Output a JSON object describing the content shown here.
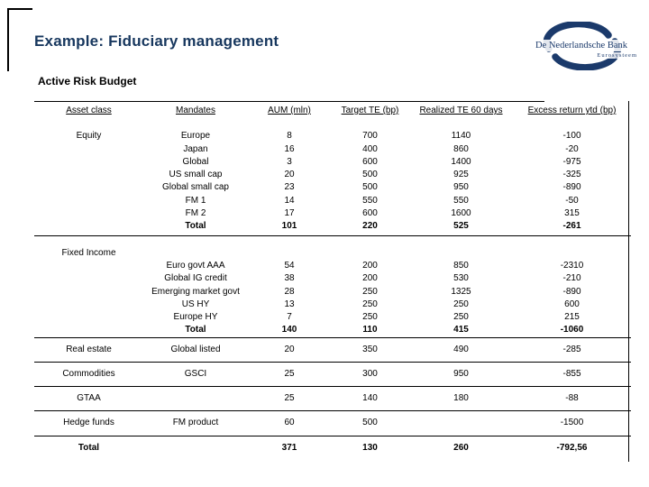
{
  "slide": {
    "title": "Example: Fiduciary management"
  },
  "logo": {
    "name": "De Nederlandsche Bank",
    "subtitle": "Eurosysteem",
    "color": "#1b3a6b"
  },
  "accent_colors": {
    "title_navy": "#17375e",
    "table_line": "#000000"
  },
  "table": {
    "title": "Active Risk Budget",
    "headers": [
      "Asset class",
      "Mandates",
      "AUM (mln)",
      "Target TE (bp)",
      "Realized TE 60 days",
      "Excess return ytd (bp)"
    ],
    "rows": [
      {
        "type": "normal",
        "cells": [
          "Equity",
          "Europe",
          "8",
          "700",
          "1140",
          "-100"
        ]
      },
      {
        "type": "normal",
        "cells": [
          "",
          "Japan",
          "16",
          "400",
          "860",
          "-20"
        ]
      },
      {
        "type": "normal",
        "cells": [
          "",
          "Global",
          "3",
          "600",
          "1400",
          "-975"
        ]
      },
      {
        "type": "normal",
        "cells": [
          "",
          "US small cap",
          "20",
          "500",
          "925",
          "-325"
        ]
      },
      {
        "type": "normal",
        "cells": [
          "",
          "Global small cap",
          "23",
          "500",
          "950",
          "-890"
        ]
      },
      {
        "type": "normal",
        "cells": [
          "",
          "FM 1",
          "14",
          "550",
          "550",
          "-50"
        ]
      },
      {
        "type": "normal",
        "cells": [
          "",
          "FM 2",
          "17",
          "600",
          "1600",
          "315"
        ]
      },
      {
        "type": "total",
        "cells": [
          "",
          "Total",
          "101",
          "220",
          "525",
          "-261"
        ]
      },
      {
        "type": "section",
        "cells": [
          "Fixed Income",
          "",
          "",
          "",
          "",
          ""
        ]
      },
      {
        "type": "normal",
        "cells": [
          "",
          "Euro govt AAA",
          "54",
          "200",
          "850",
          "-2310"
        ]
      },
      {
        "type": "normal",
        "cells": [
          "",
          "Global IG credit",
          "38",
          "200",
          "530",
          "-210"
        ]
      },
      {
        "type": "normal",
        "cells": [
          "",
          "Emerging market govt",
          "28",
          "250",
          "1325",
          "-890"
        ]
      },
      {
        "type": "normal",
        "cells": [
          "",
          "US HY",
          "13",
          "250",
          "250",
          "600"
        ]
      },
      {
        "type": "normal",
        "cells": [
          "",
          "Europe HY",
          "7",
          "250",
          "250",
          "215"
        ]
      },
      {
        "type": "total",
        "cells": [
          "",
          "Total",
          "140",
          "110",
          "415",
          "-1060"
        ]
      },
      {
        "type": "single",
        "cells": [
          "Real estate",
          "Global listed",
          "20",
          "350",
          "490",
          "-285"
        ]
      },
      {
        "type": "single",
        "cells": [
          "Commodities",
          "GSCI",
          "25",
          "300",
          "950",
          "-855"
        ]
      },
      {
        "type": "single",
        "cells": [
          "GTAA",
          "",
          "25",
          "140",
          "180",
          "-88"
        ]
      },
      {
        "type": "single",
        "cells": [
          "Hedge funds",
          "FM product",
          "60",
          "500",
          "",
          "-1500"
        ]
      },
      {
        "type": "grand",
        "cells": [
          "Total",
          "",
          "371",
          "130",
          "260",
          "-792,56"
        ]
      }
    ]
  }
}
